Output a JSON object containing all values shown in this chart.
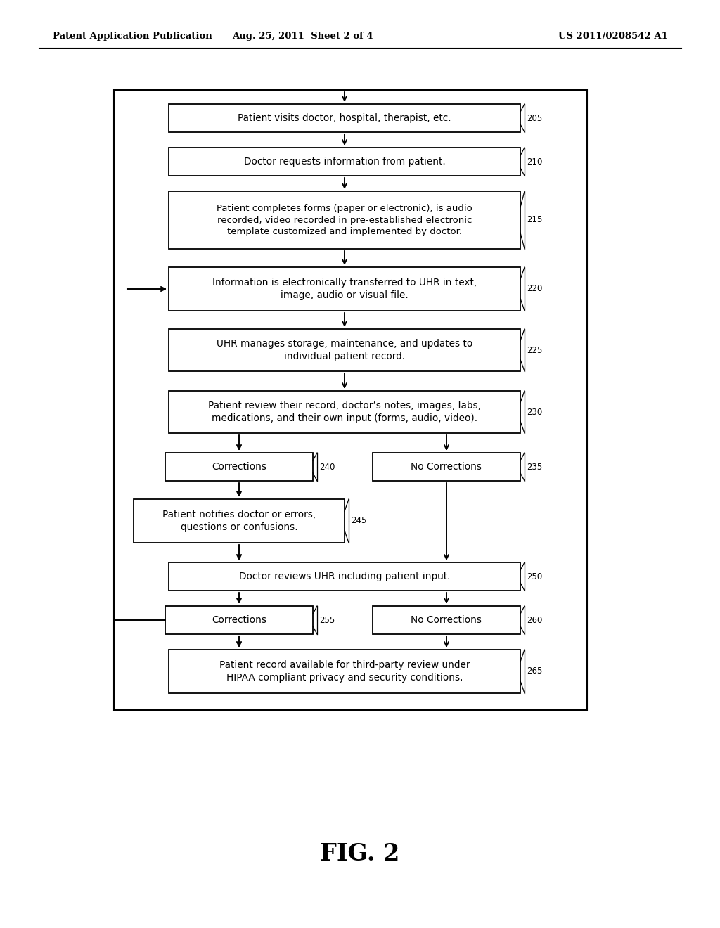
{
  "bg_color": "#ffffff",
  "header_left": "Patent Application Publication",
  "header_center": "Aug. 25, 2011  Sheet 2 of 4",
  "header_right": "US 2011/0208542 A1",
  "figure_label": "FIG. 2"
}
